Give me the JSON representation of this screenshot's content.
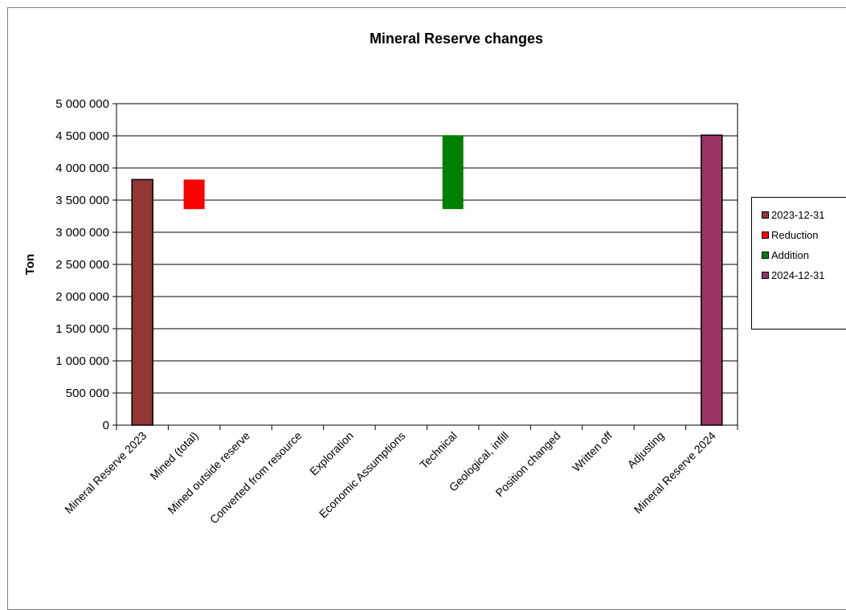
{
  "chart_data": {
    "type": "bar",
    "title": "Mineral Reserve changes",
    "ylabel": "Ton",
    "xlabel": "",
    "ylim": [
      0,
      5000000
    ],
    "yticks": [
      0,
      500000,
      1000000,
      1500000,
      2000000,
      2500000,
      3000000,
      3500000,
      4000000,
      4500000,
      5000000
    ],
    "ytick_labels": [
      "0",
      "500 000",
      "1 000 000",
      "1 500 000",
      "2 000 000",
      "2 500 000",
      "3 000 000",
      "3 500 000",
      "4 000 000",
      "4 500 000",
      "5 000 000"
    ],
    "grid": true,
    "legend_position": "right",
    "categories": [
      "Mineral Reserve 2023",
      "Mined (total)",
      "Mined outside reserve",
      "Converted from resource",
      "Exploration",
      "Economic Assumptions",
      "Technical",
      "Geological, infill",
      "Position changed",
      "Written off",
      "Adjusting",
      "Mineral Reserve 2024"
    ],
    "series": [
      {
        "name": "2023-12-31",
        "color": "#943634",
        "bars": [
          {
            "category": "Mineral Reserve 2023",
            "base": 0,
            "top": 3820000
          }
        ]
      },
      {
        "name": "Reduction",
        "color": "#ff0000",
        "bars": [
          {
            "category": "Mined (total)",
            "base": 3360000,
            "top": 3820000
          }
        ]
      },
      {
        "name": "Addition",
        "color": "#008000",
        "bars": [
          {
            "category": "Technical",
            "base": 3360000,
            "top": 4510000
          }
        ]
      },
      {
        "name": "2024-12-31",
        "color": "#993366",
        "bars": [
          {
            "category": "Mineral Reserve 2024",
            "base": 0,
            "top": 4510000
          }
        ]
      }
    ]
  }
}
